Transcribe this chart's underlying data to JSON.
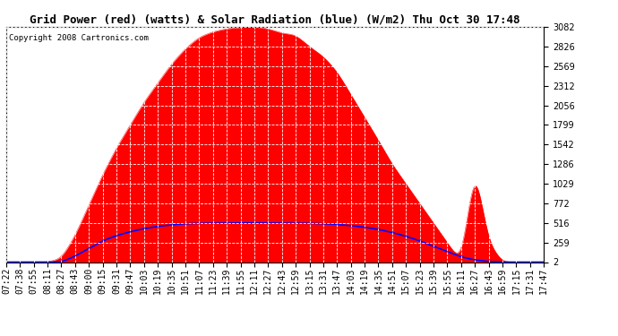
{
  "title": "Grid Power (red) (watts) & Solar Radiation (blue) (W/m2) Thu Oct 30 17:48",
  "copyright": "Copyright 2008 Cartronics.com",
  "background_color": "#ffffff",
  "plot_bg_color": "#ffffff",
  "yticks": [
    2.4,
    259.1,
    515.8,
    772.4,
    1029.1,
    1285.8,
    1542.5,
    1799.1,
    2055.8,
    2312.5,
    2569.2,
    2825.9,
    3082.5
  ],
  "ymin": 2.4,
  "ymax": 3082.5,
  "x_labels": [
    "07:22",
    "07:38",
    "07:55",
    "08:11",
    "08:27",
    "08:43",
    "09:00",
    "09:15",
    "09:31",
    "09:47",
    "10:03",
    "10:19",
    "10:35",
    "10:51",
    "11:07",
    "11:23",
    "11:39",
    "11:55",
    "12:11",
    "12:27",
    "12:43",
    "12:59",
    "13:15",
    "13:31",
    "13:47",
    "14:03",
    "14:19",
    "14:35",
    "14:51",
    "15:07",
    "15:23",
    "15:39",
    "15:55",
    "16:11",
    "16:27",
    "16:43",
    "16:59",
    "17:15",
    "17:31",
    "17:47"
  ],
  "red_fill_color": "#ff0000",
  "blue_line_color": "#0000ff",
  "grid_color": "#ffffff",
  "grid_linestyle": "--",
  "title_fontsize": 9,
  "copyright_fontsize": 6.5,
  "tick_fontsize": 7
}
